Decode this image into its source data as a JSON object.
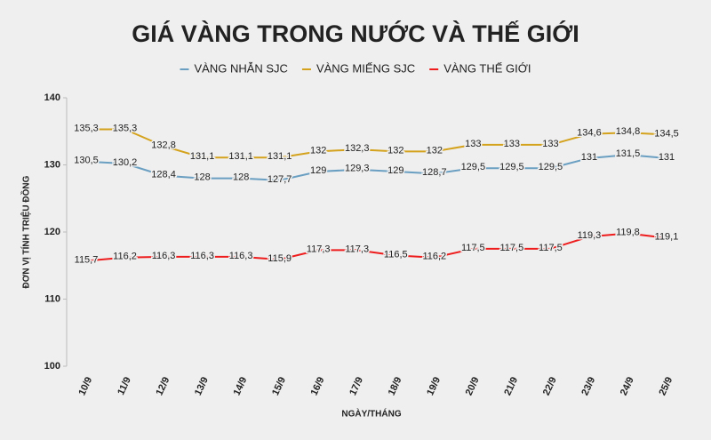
{
  "chart_data": {
    "type": "line",
    "title": "GIÁ VÀNG TRONG NƯỚC VÀ THẾ GIỚI",
    "y_label": "ĐƠN VỊ TÍNH TRIỆU ĐỒNG",
    "x_label": "NGÀY/THÁNG",
    "categories": [
      "10/9",
      "11/9",
      "12/9",
      "13/9",
      "14/9",
      "15/9",
      "16/9",
      "17/9",
      "18/9",
      "19/9",
      "20/9",
      "21/9",
      "22/9",
      "23/9",
      "24/9",
      "25/9"
    ],
    "series": [
      {
        "name": "VÀNG NHẪN SJC",
        "color": "#6a9fc2",
        "values": [
          130.5,
          130.2,
          128.4,
          128,
          128,
          127.7,
          129,
          129.3,
          129,
          128.7,
          129.5,
          129.5,
          129.5,
          131,
          131.5,
          131
        ],
        "value_labels": [
          "130,5",
          "130,2",
          "128,4",
          "128",
          "128",
          "127,7",
          "129",
          "129,3",
          "129",
          "128,7",
          "129,5",
          "129,5",
          "129,5",
          "131",
          "131,5",
          "131"
        ]
      },
      {
        "name": "VÀNG MIẾNG SJC",
        "color": "#d4a21c",
        "values": [
          135.3,
          135.3,
          132.8,
          131.1,
          131.1,
          131.1,
          132,
          132.3,
          132,
          132,
          133,
          133,
          133,
          134.6,
          134.8,
          134.5
        ],
        "value_labels": [
          "135,3",
          "135,3",
          "132,8",
          "131,1",
          "131,1",
          "131,1",
          "132",
          "132,3",
          "132",
          "132",
          "133",
          "133",
          "133",
          "134,6",
          "134,8",
          "134,5"
        ]
      },
      {
        "name": "VÀNG THẾ GIỚI",
        "color": "#ee1c1c",
        "values": [
          115.7,
          116.2,
          116.3,
          116.3,
          116.3,
          115.9,
          117.3,
          117.3,
          116.5,
          116.2,
          117.5,
          117.5,
          117.5,
          119.3,
          119.8,
          119.1
        ],
        "value_labels": [
          "115,7",
          "116,2",
          "116,3",
          "116,3",
          "116,3",
          "115,9",
          "117,3",
          "117,3",
          "116,5",
          "116,2",
          "117,5",
          "117,5",
          "117,5",
          "119,3",
          "119,8",
          "119,1"
        ]
      }
    ],
    "ylim": [
      100,
      140
    ],
    "yticks": [
      100,
      110,
      120,
      130,
      140
    ],
    "grid": false
  }
}
